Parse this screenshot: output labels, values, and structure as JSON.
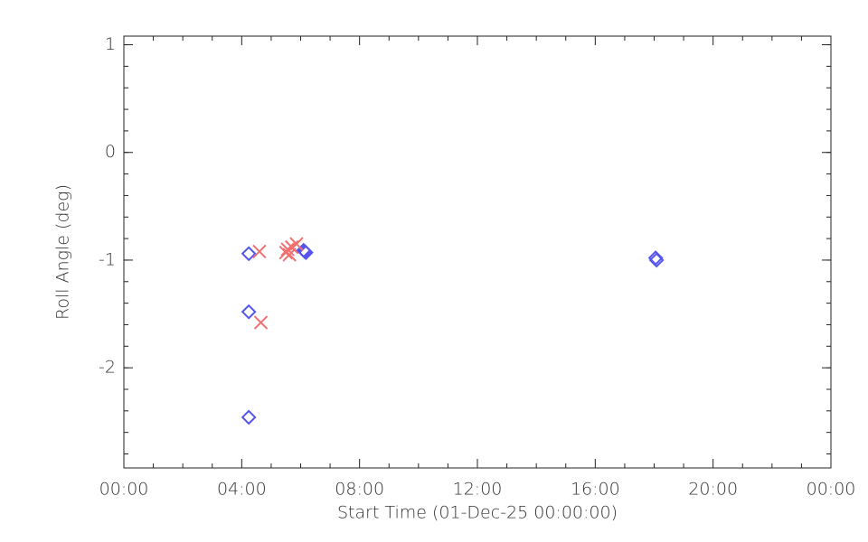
{
  "chart_data": {
    "type": "scatter",
    "x_label": "Start Time (01-Dec-25 00:00:00)",
    "y_label": "Roll Angle (deg)",
    "xlim": [
      0,
      24
    ],
    "xticks": [
      {
        "value": 0,
        "label": "00:00"
      },
      {
        "value": 4,
        "label": "04:00"
      },
      {
        "value": 8,
        "label": "08:00"
      },
      {
        "value": 12,
        "label": "12:00"
      },
      {
        "value": 16,
        "label": "16:00"
      },
      {
        "value": 20,
        "label": "20:00"
      },
      {
        "value": 24,
        "label": "00:00"
      }
    ],
    "ylim": [
      -2.93,
      1.08
    ],
    "yticks": [
      -2,
      -1,
      0,
      1
    ],
    "series": [
      {
        "color": "#5555ee",
        "marker": "diamond",
        "x": [
          4.24,
          4.24,
          4.24,
          6.1,
          6.14,
          6.18,
          18.05,
          18.08
        ],
        "values": [
          -0.94,
          -1.48,
          -2.46,
          -0.91,
          -0.92,
          -0.93,
          -0.98,
          -1.0
        ]
      },
      {
        "color": "#f07070",
        "marker": "x",
        "x": [
          4.6,
          4.65,
          5.5,
          5.56,
          5.62,
          5.7,
          5.86
        ],
        "values": [
          -0.92,
          -1.58,
          -0.93,
          -0.9,
          -0.95,
          -0.88,
          -0.85
        ]
      }
    ]
  }
}
